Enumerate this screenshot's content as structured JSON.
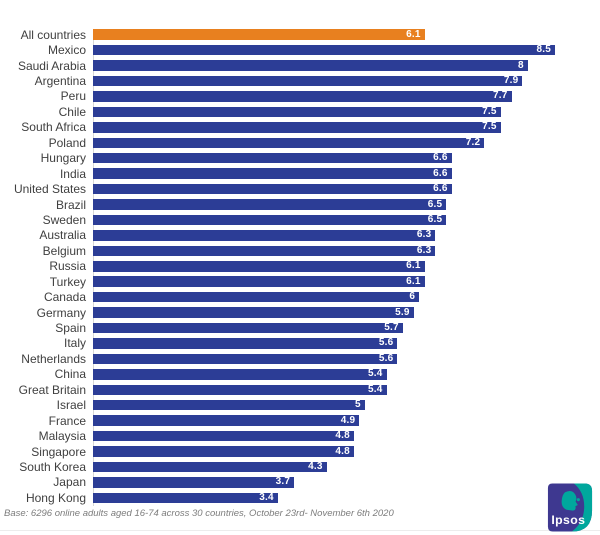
{
  "chart_data": {
    "type": "bar",
    "orientation": "horizontal",
    "title": "",
    "xlabel": "",
    "ylabel": "",
    "xlim": [
      0,
      8.5
    ],
    "grid": false,
    "legend": "none",
    "categories": [
      "All countries",
      "Mexico",
      "Saudi Arabia",
      "Argentina",
      "Peru",
      "Chile",
      "South Africa",
      "Poland",
      "Hungary",
      "India",
      "United States",
      "Brazil",
      "Sweden",
      "Australia",
      "Belgium",
      "Russia",
      "Turkey",
      "Canada",
      "Germany",
      "Spain",
      "Italy",
      "Netherlands",
      "China",
      "Great Britain",
      "Israel",
      "France",
      "Malaysia",
      "Singapore",
      "South Korea",
      "Japan",
      "Hong Kong"
    ],
    "values": [
      6.1,
      8.5,
      8,
      7.9,
      7.7,
      7.5,
      7.5,
      7.2,
      6.6,
      6.6,
      6.6,
      6.5,
      6.5,
      6.3,
      6.3,
      6.1,
      6.1,
      6,
      5.9,
      5.7,
      5.6,
      5.6,
      5.4,
      5.4,
      5,
      4.9,
      4.8,
      4.8,
      4.3,
      3.7,
      3.4
    ],
    "value_labels": [
      "6.1",
      "8.5",
      "8",
      "7.9",
      "7.7",
      "7.5",
      "7.5",
      "7.2",
      "6.6",
      "6.6",
      "6.6",
      "6.5",
      "6.5",
      "6.3",
      "6.3",
      "6.1",
      "6.1",
      "6",
      "5.9",
      "5.7",
      "5.6",
      "5.6",
      "5.4",
      "5.4",
      "5",
      "4.9",
      "4.8",
      "4.8",
      "4.3",
      "3.7",
      "3.4"
    ],
    "highlight_category": "All countries",
    "bar_color": "#2C3D96",
    "highlight_color": "#E8801F",
    "value_text_color": "#FFFFFF"
  },
  "footer": {
    "base_note": "Base: 6296 online adults aged 16-74 across 30 countries, October 23rd- November 6th 2020"
  },
  "branding": {
    "logo_text": "Ipsos",
    "logo_bg_color": "#3E3890",
    "logo_accent_color": "#00A79D"
  }
}
